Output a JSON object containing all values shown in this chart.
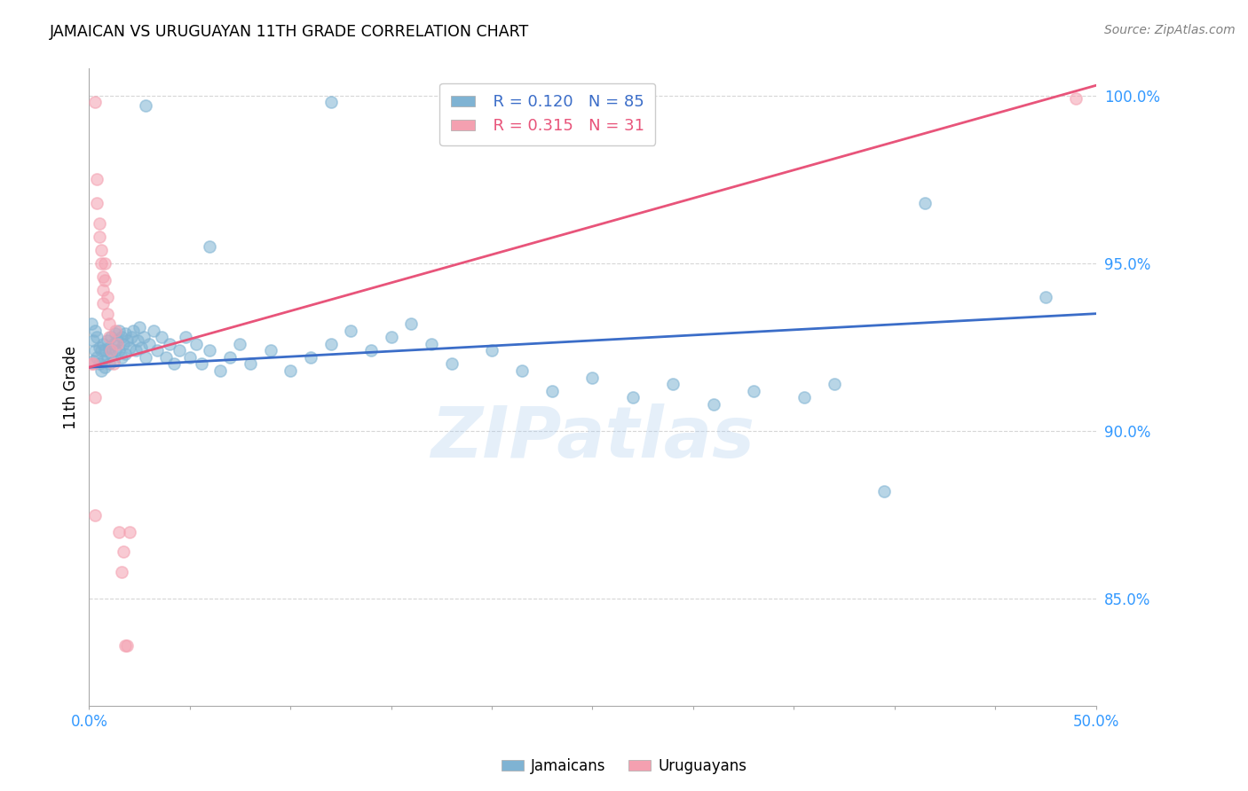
{
  "title": "JAMAICAN VS URUGUAYAN 11TH GRADE CORRELATION CHART",
  "source": "Source: ZipAtlas.com",
  "ylabel": "11th Grade",
  "x_min": 0.0,
  "x_max": 0.5,
  "y_min": 0.818,
  "y_max": 1.008,
  "blue_color": "#7FB3D3",
  "pink_color": "#F4A0B0",
  "blue_line_color": "#3B6DC8",
  "pink_line_color": "#E8547A",
  "legend_blue_r": "R = 0.120",
  "legend_blue_n": "N = 85",
  "legend_pink_r": "R = 0.315",
  "legend_pink_n": "N = 31",
  "watermark": "ZIPatlas",
  "blue_line": [
    0.0,
    0.919,
    0.5,
    0.935
  ],
  "pink_line": [
    0.0,
    0.919,
    0.5,
    1.003
  ],
  "blue_scatter": [
    [
      0.001,
      0.932
    ],
    [
      0.002,
      0.927
    ],
    [
      0.002,
      0.921
    ],
    [
      0.003,
      0.93
    ],
    [
      0.003,
      0.924
    ],
    [
      0.004,
      0.928
    ],
    [
      0.004,
      0.922
    ],
    [
      0.005,
      0.925
    ],
    [
      0.005,
      0.92
    ],
    [
      0.006,
      0.924
    ],
    [
      0.006,
      0.918
    ],
    [
      0.007,
      0.926
    ],
    [
      0.007,
      0.921
    ],
    [
      0.008,
      0.924
    ],
    [
      0.008,
      0.919
    ],
    [
      0.009,
      0.927
    ],
    [
      0.009,
      0.922
    ],
    [
      0.01,
      0.925
    ],
    [
      0.01,
      0.92
    ],
    [
      0.011,
      0.928
    ],
    [
      0.011,
      0.923
    ],
    [
      0.012,
      0.926
    ],
    [
      0.012,
      0.921
    ],
    [
      0.013,
      0.929
    ],
    [
      0.013,
      0.924
    ],
    [
      0.014,
      0.927
    ],
    [
      0.015,
      0.93
    ],
    [
      0.015,
      0.924
    ],
    [
      0.016,
      0.928
    ],
    [
      0.016,
      0.922
    ],
    [
      0.017,
      0.926
    ],
    [
      0.018,
      0.929
    ],
    [
      0.018,
      0.923
    ],
    [
      0.019,
      0.927
    ],
    [
      0.02,
      0.925
    ],
    [
      0.021,
      0.928
    ],
    [
      0.022,
      0.93
    ],
    [
      0.023,
      0.924
    ],
    [
      0.024,
      0.927
    ],
    [
      0.025,
      0.931
    ],
    [
      0.026,
      0.925
    ],
    [
      0.027,
      0.928
    ],
    [
      0.028,
      0.922
    ],
    [
      0.03,
      0.926
    ],
    [
      0.032,
      0.93
    ],
    [
      0.034,
      0.924
    ],
    [
      0.036,
      0.928
    ],
    [
      0.038,
      0.922
    ],
    [
      0.04,
      0.926
    ],
    [
      0.042,
      0.92
    ],
    [
      0.045,
      0.924
    ],
    [
      0.048,
      0.928
    ],
    [
      0.05,
      0.922
    ],
    [
      0.053,
      0.926
    ],
    [
      0.056,
      0.92
    ],
    [
      0.06,
      0.924
    ],
    [
      0.065,
      0.918
    ],
    [
      0.07,
      0.922
    ],
    [
      0.075,
      0.926
    ],
    [
      0.08,
      0.92
    ],
    [
      0.09,
      0.924
    ],
    [
      0.1,
      0.918
    ],
    [
      0.11,
      0.922
    ],
    [
      0.12,
      0.926
    ],
    [
      0.13,
      0.93
    ],
    [
      0.14,
      0.924
    ],
    [
      0.15,
      0.928
    ],
    [
      0.16,
      0.932
    ],
    [
      0.17,
      0.926
    ],
    [
      0.18,
      0.92
    ],
    [
      0.2,
      0.924
    ],
    [
      0.215,
      0.918
    ],
    [
      0.23,
      0.912
    ],
    [
      0.25,
      0.916
    ],
    [
      0.27,
      0.91
    ],
    [
      0.29,
      0.914
    ],
    [
      0.31,
      0.908
    ],
    [
      0.33,
      0.912
    ],
    [
      0.355,
      0.91
    ],
    [
      0.37,
      0.914
    ],
    [
      0.395,
      0.882
    ],
    [
      0.028,
      0.997
    ],
    [
      0.12,
      0.998
    ],
    [
      0.415,
      0.968
    ],
    [
      0.475,
      0.94
    ],
    [
      0.06,
      0.955
    ]
  ],
  "pink_scatter": [
    [
      0.003,
      0.998
    ],
    [
      0.004,
      0.975
    ],
    [
      0.004,
      0.968
    ],
    [
      0.005,
      0.962
    ],
    [
      0.005,
      0.958
    ],
    [
      0.006,
      0.954
    ],
    [
      0.006,
      0.95
    ],
    [
      0.007,
      0.946
    ],
    [
      0.007,
      0.942
    ],
    [
      0.007,
      0.938
    ],
    [
      0.008,
      0.95
    ],
    [
      0.008,
      0.945
    ],
    [
      0.009,
      0.94
    ],
    [
      0.009,
      0.935
    ],
    [
      0.01,
      0.932
    ],
    [
      0.01,
      0.928
    ],
    [
      0.011,
      0.924
    ],
    [
      0.012,
      0.92
    ],
    [
      0.013,
      0.93
    ],
    [
      0.014,
      0.926
    ],
    [
      0.002,
      0.92
    ],
    [
      0.001,
      0.92
    ],
    [
      0.015,
      0.87
    ],
    [
      0.016,
      0.858
    ],
    [
      0.017,
      0.864
    ],
    [
      0.018,
      0.836
    ],
    [
      0.019,
      0.836
    ],
    [
      0.003,
      0.875
    ],
    [
      0.49,
      0.999
    ],
    [
      0.02,
      0.87
    ],
    [
      0.003,
      0.91
    ]
  ]
}
